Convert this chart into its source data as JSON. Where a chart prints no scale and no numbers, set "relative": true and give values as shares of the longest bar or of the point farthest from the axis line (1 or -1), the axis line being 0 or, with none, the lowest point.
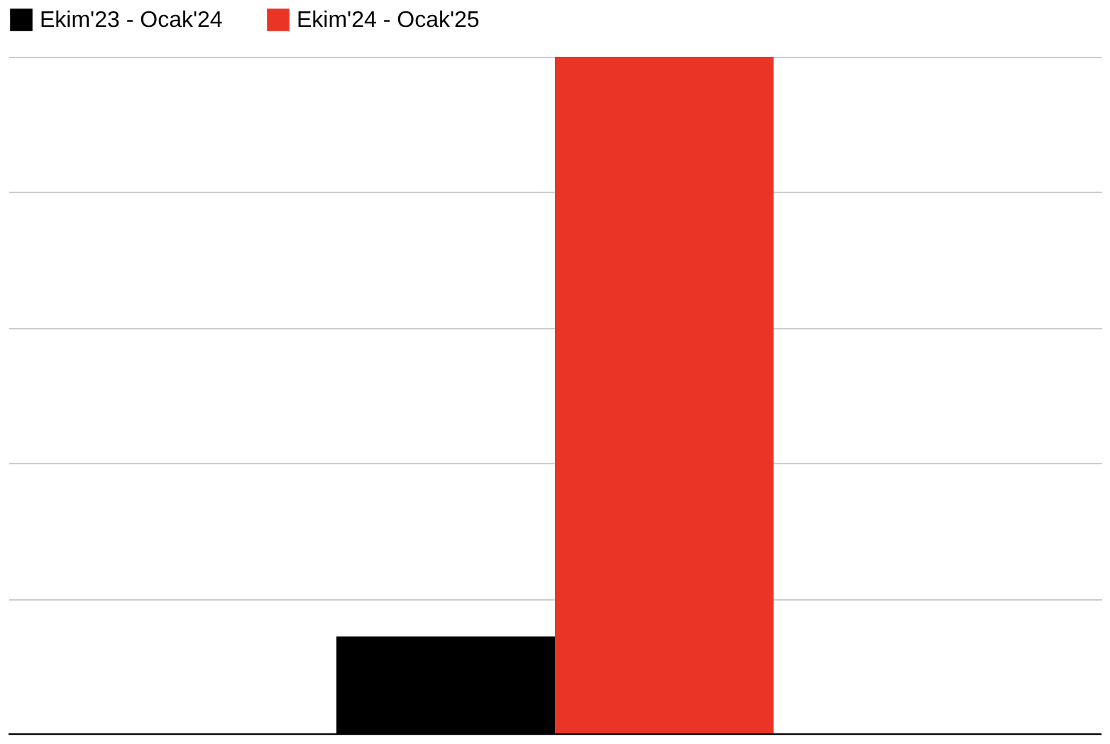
{
  "chart_data": {
    "type": "bar",
    "relative": true,
    "categories": [
      null
    ],
    "series": [
      {
        "name": "Ekim'23 - Ocak'24",
        "color": "#000000",
        "values": [
          0.144
        ]
      },
      {
        "name": "Ekim'24 - Ocak'25",
        "color": "#e93426",
        "values": [
          1
        ]
      }
    ],
    "grid": "y",
    "legend": "top"
  }
}
